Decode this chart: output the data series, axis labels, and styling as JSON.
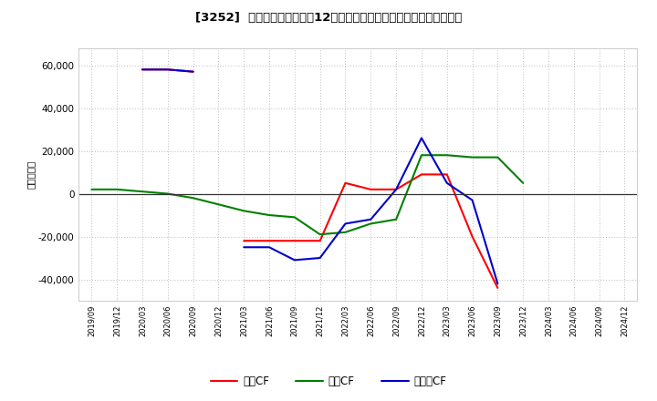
{
  "title": "[3252]  キャッシュフローの12か月移動合計の対前年同期増減額の推移",
  "ylabel": "（百万円）",
  "background_color": "#ffffff",
  "plot_bg_color": "#ffffff",
  "grid_color": "#bbbbbb",
  "x_labels": [
    "2019/09",
    "2019/12",
    "2020/03",
    "2020/06",
    "2020/09",
    "2020/12",
    "2021/03",
    "2021/06",
    "2021/09",
    "2021/12",
    "2022/03",
    "2022/06",
    "2022/09",
    "2022/12",
    "2023/03",
    "2023/06",
    "2023/09",
    "2023/12",
    "2024/03",
    "2024/06",
    "2024/09",
    "2024/12"
  ],
  "operating_cf": [
    null,
    null,
    58000,
    58000,
    57000,
    null,
    -22000,
    -22000,
    -22000,
    -22000,
    5000,
    2000,
    2000,
    9000,
    9000,
    -20000,
    -44000,
    null,
    null,
    null,
    null,
    null
  ],
  "investing_cf": [
    2000,
    2000,
    1000,
    0,
    -2000,
    -5000,
    -8000,
    -10000,
    -11000,
    -19000,
    -18000,
    -14000,
    -12000,
    18000,
    18000,
    17000,
    17000,
    5000,
    null,
    null,
    null,
    null
  ],
  "free_cf": [
    null,
    null,
    58000,
    58000,
    57000,
    null,
    -25000,
    -25000,
    -31000,
    -30000,
    -14000,
    -12000,
    2000,
    26000,
    5000,
    -3000,
    -42000,
    null,
    null,
    null,
    null,
    null
  ],
  "ylim": [
    -50000,
    68000
  ],
  "yticks": [
    -40000,
    -20000,
    0,
    20000,
    40000,
    60000
  ],
  "line_colors": {
    "operating": "#ff0000",
    "investing": "#008000",
    "free": "#0000cc"
  },
  "line_width": 1.5,
  "legend_labels": [
    "営業CF",
    "投資CF",
    "フリーCF"
  ]
}
